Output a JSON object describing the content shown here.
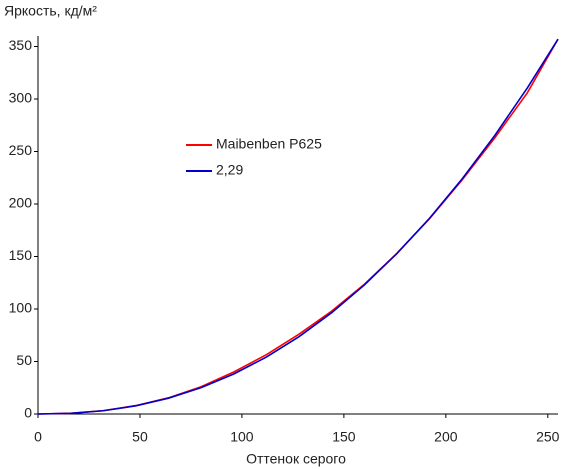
{
  "chart_data": {
    "type": "line",
    "y_label": "Яркость, кд/м²",
    "x_label": "Оттенок серого",
    "x": [
      0,
      16,
      32,
      48,
      64,
      80,
      96,
      112,
      128,
      144,
      160,
      176,
      192,
      208,
      224,
      240,
      255
    ],
    "series": [
      {
        "name": "Maibenben P625",
        "color": "#ff0000",
        "values": [
          0,
          0.7,
          3.2,
          8,
          15.4,
          26,
          40,
          56.5,
          76,
          98,
          123.5,
          153,
          186,
          223,
          263,
          306,
          357
        ]
      },
      {
        "name": "2,29",
        "color": "#0000cc",
        "values": [
          0,
          0.63,
          3.08,
          7.79,
          15.06,
          25.1,
          38.11,
          54.25,
          73.66,
          96.47,
          122.8,
          152.8,
          186.4,
          223.9,
          265.3,
          310.7,
          357
        ]
      }
    ],
    "xlim": [
      0,
      255
    ],
    "ylim": [
      0,
      360
    ],
    "xticks": [
      0,
      50,
      100,
      150,
      200,
      250
    ],
    "yticks": [
      0,
      50,
      100,
      150,
      200,
      250,
      300,
      350
    ],
    "grid": false
  }
}
